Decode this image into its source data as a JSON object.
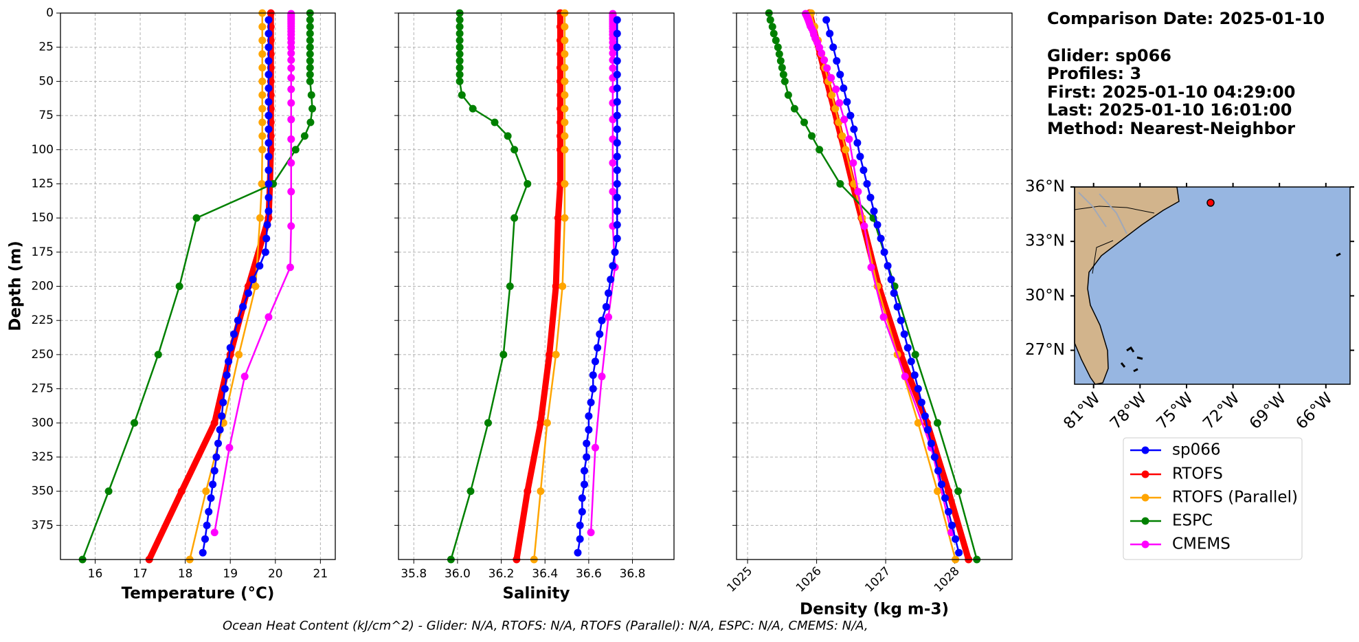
{
  "chart_data": [
    {
      "type": "line",
      "xlabel": "Temperature (°C)",
      "ylabel": "Depth (m)",
      "xlim": [
        15.23,
        21.33
      ],
      "xticks": [
        16,
        17,
        18,
        19,
        20,
        21
      ],
      "ylim": [
        400,
        0
      ],
      "yticks": [
        0,
        25,
        50,
        75,
        100,
        125,
        150,
        175,
        200,
        225,
        250,
        275,
        300,
        325,
        350,
        375
      ],
      "grid": true,
      "series": [
        {
          "name": "sp066",
          "color": "#0000ff",
          "depth": [
            5,
            15,
            25,
            35,
            45,
            55,
            65,
            75,
            85,
            95,
            105,
            115,
            125,
            135,
            145,
            155,
            165,
            175,
            185,
            195,
            205,
            215,
            225,
            235,
            245,
            255,
            265,
            275,
            285,
            295,
            305,
            315,
            325,
            335,
            345,
            355,
            365,
            375,
            385,
            395
          ],
          "values": [
            19.85,
            19.85,
            19.85,
            19.85,
            19.85,
            19.85,
            19.85,
            19.85,
            19.85,
            19.85,
            19.85,
            19.85,
            19.85,
            19.85,
            19.85,
            19.82,
            19.8,
            19.78,
            19.65,
            19.5,
            19.4,
            19.28,
            19.17,
            19.08,
            19.0,
            18.96,
            18.92,
            18.88,
            18.84,
            18.81,
            18.77,
            18.73,
            18.69,
            18.65,
            18.61,
            18.57,
            18.52,
            18.48,
            18.44,
            18.39
          ]
        },
        {
          "name": "RTOFS",
          "color": "#ff0000",
          "depth": [
            0,
            10,
            20,
            30,
            40,
            50,
            60,
            70,
            80,
            90,
            100,
            125,
            150,
            200,
            250,
            300,
            350,
            400
          ],
          "values": [
            19.9,
            19.9,
            19.9,
            19.9,
            19.9,
            19.9,
            19.9,
            19.9,
            19.9,
            19.9,
            19.9,
            19.88,
            19.85,
            19.4,
            19.0,
            18.65,
            17.92,
            17.2
          ]
        },
        {
          "name": "RTOFS (Parallel)",
          "color": "#ffa500",
          "depth": [
            0,
            10,
            20,
            30,
            40,
            50,
            60,
            70,
            80,
            90,
            100,
            125,
            150,
            200,
            250,
            300,
            350,
            400
          ],
          "values": [
            19.71,
            19.71,
            19.71,
            19.71,
            19.71,
            19.71,
            19.71,
            19.71,
            19.71,
            19.71,
            19.71,
            19.7,
            19.66,
            19.56,
            19.19,
            18.85,
            18.46,
            18.1
          ]
        },
        {
          "name": "ESPC",
          "color": "#008000",
          "depth": [
            0,
            5,
            10,
            15,
            20,
            25,
            30,
            35,
            40,
            45,
            50,
            60,
            70,
            80,
            90,
            100,
            125,
            150,
            200,
            250,
            300,
            350,
            400
          ],
          "values": [
            20.77,
            20.77,
            20.77,
            20.77,
            20.77,
            20.77,
            20.77,
            20.77,
            20.77,
            20.77,
            20.77,
            20.8,
            20.82,
            20.78,
            20.65,
            20.45,
            19.95,
            18.25,
            17.87,
            17.4,
            16.87,
            16.3,
            15.72
          ]
        },
        {
          "name": "CMEMS",
          "color": "#ff00ff",
          "depth": [
            0.5,
            1.5,
            2.6,
            3.8,
            5,
            6.4,
            7.9,
            9.6,
            11.4,
            13.5,
            15.8,
            18.5,
            21.6,
            25.2,
            29.4,
            34.4,
            40.3,
            47.4,
            55.8,
            65.8,
            77.9,
            92.3,
            109.7,
            130.7,
            155.9,
            186.1,
            222.5,
            266,
            318.1,
            380.2
          ],
          "values": [
            20.35,
            20.35,
            20.35,
            20.35,
            20.35,
            20.35,
            20.35,
            20.35,
            20.35,
            20.35,
            20.35,
            20.35,
            20.35,
            20.35,
            20.35,
            20.35,
            20.35,
            20.35,
            20.35,
            20.35,
            20.35,
            20.35,
            20.35,
            20.35,
            20.35,
            20.33,
            19.85,
            19.32,
            18.98,
            18.65
          ]
        }
      ]
    },
    {
      "type": "line",
      "xlabel": "Salinity",
      "xlim": [
        35.73,
        36.99
      ],
      "xticks": [
        35.8,
        {
          "value": 36,
          "label": "36.0"
        },
        36.2,
        36.4,
        36.6,
        36.8
      ],
      "series": [
        {
          "values": [
            36.73,
            36.73,
            36.73,
            36.73,
            36.73,
            36.73,
            36.73,
            36.73,
            36.73,
            36.73,
            36.73,
            36.73,
            36.73,
            36.73,
            36.73,
            36.73,
            36.73,
            36.72,
            36.71,
            36.7,
            36.69,
            36.68,
            36.66,
            36.65,
            36.64,
            36.63,
            36.62,
            36.62,
            36.61,
            36.6,
            36.6,
            36.59,
            36.59,
            36.58,
            36.58,
            36.57,
            36.57,
            36.56,
            36.56,
            36.55
          ]
        },
        {
          "values": [
            36.47,
            36.47,
            36.47,
            36.47,
            36.47,
            36.47,
            36.47,
            36.47,
            36.47,
            36.47,
            36.47,
            36.47,
            36.46,
            36.45,
            36.42,
            36.38,
            36.32,
            36.27
          ]
        },
        {
          "values": [
            36.49,
            36.49,
            36.49,
            36.49,
            36.49,
            36.49,
            36.49,
            36.49,
            36.49,
            36.49,
            36.49,
            36.49,
            36.49,
            36.48,
            36.45,
            36.41,
            36.38,
            36.35
          ]
        },
        {
          "values": [
            36.01,
            36.01,
            36.01,
            36.01,
            36.01,
            36.01,
            36.01,
            36.01,
            36.01,
            36.01,
            36.01,
            36.02,
            36.07,
            36.17,
            36.23,
            36.26,
            36.32,
            36.26,
            36.24,
            36.21,
            36.14,
            36.06,
            35.97
          ]
        },
        {
          "values": [
            36.71,
            36.71,
            36.71,
            36.71,
            36.71,
            36.71,
            36.71,
            36.71,
            36.71,
            36.71,
            36.71,
            36.71,
            36.71,
            36.71,
            36.71,
            36.71,
            36.71,
            36.71,
            36.71,
            36.71,
            36.71,
            36.71,
            36.71,
            36.71,
            36.71,
            36.72,
            36.69,
            36.66,
            36.63,
            36.61
          ]
        }
      ]
    },
    {
      "type": "line",
      "xlabel": "Density (kg m-3)",
      "xlim": [
        1024.84,
        1028.83
      ],
      "xticks": [
        1025,
        1026,
        1027,
        1028
      ],
      "series": [
        {
          "values": [
            1026.14,
            1026.19,
            1026.24,
            1026.29,
            1026.34,
            1026.39,
            1026.44,
            1026.49,
            1026.54,
            1026.59,
            1026.63,
            1026.68,
            1026.73,
            1026.78,
            1026.83,
            1026.88,
            1026.93,
            1026.98,
            1027.03,
            1027.08,
            1027.12,
            1027.17,
            1027.22,
            1027.27,
            1027.32,
            1027.37,
            1027.42,
            1027.47,
            1027.52,
            1027.57,
            1027.61,
            1027.66,
            1027.71,
            1027.76,
            1027.81,
            1027.86,
            1027.91,
            1027.96,
            1028.01,
            1028.06
          ]
        },
        {
          "values": [
            1025.9,
            1025.95,
            1026.0,
            1026.05,
            1026.1,
            1026.15,
            1026.2,
            1026.25,
            1026.3,
            1026.35,
            1026.4,
            1026.52,
            1026.65,
            1026.9,
            1027.22,
            1027.6,
            1027.91,
            1028.2
          ]
        },
        {
          "values": [
            1025.92,
            1025.97,
            1026.02,
            1026.07,
            1026.12,
            1026.17,
            1026.22,
            1026.27,
            1026.32,
            1026.37,
            1026.42,
            1026.54,
            1026.66,
            1026.88,
            1027.17,
            1027.47,
            1027.75,
            1028.01
          ]
        },
        {
          "values": [
            1025.31,
            1025.33,
            1025.36,
            1025.38,
            1025.41,
            1025.44,
            1025.46,
            1025.48,
            1025.5,
            1025.52,
            1025.54,
            1025.59,
            1025.68,
            1025.82,
            1025.93,
            1026.04,
            1026.34,
            1026.82,
            1027.13,
            1027.43,
            1027.75,
            1028.05,
            1028.32
          ]
        },
        {
          "values": [
            1025.84,
            1025.85,
            1025.86,
            1025.87,
            1025.88,
            1025.89,
            1025.9,
            1025.91,
            1025.93,
            1025.95,
            1025.96,
            1025.98,
            1026.01,
            1026.04,
            1026.07,
            1026.11,
            1026.15,
            1026.21,
            1026.28,
            1026.33,
            1026.4,
            1026.47,
            1026.53,
            1026.6,
            1026.69,
            1026.79,
            1026.97,
            1027.28,
            1027.66,
            1027.95
          ]
        }
      ]
    }
  ],
  "info": [
    "Comparison Date: 2025-01-10",
    "Glider: sp066",
    "Profiles: 3",
    "First: 2025-01-10 04:29:00",
    "Last: 2025-01-10 16:01:00",
    "Method: Nearest-Neighbor"
  ],
  "map": {
    "lat_labels": [
      "36°N",
      "33°N",
      "30°N",
      "27°N"
    ],
    "lon_labels": [
      "81°W",
      "78°W",
      "75°W",
      "72°W",
      "69°W",
      "66°W"
    ]
  },
  "footer": "Ocean Heat Content (kJ/cm^2) - Glider: N/A,  RTOFS: N/A,  RTOFS (Parallel): N/A,  ESPC: N/A,  CMEMS: N/A,"
}
